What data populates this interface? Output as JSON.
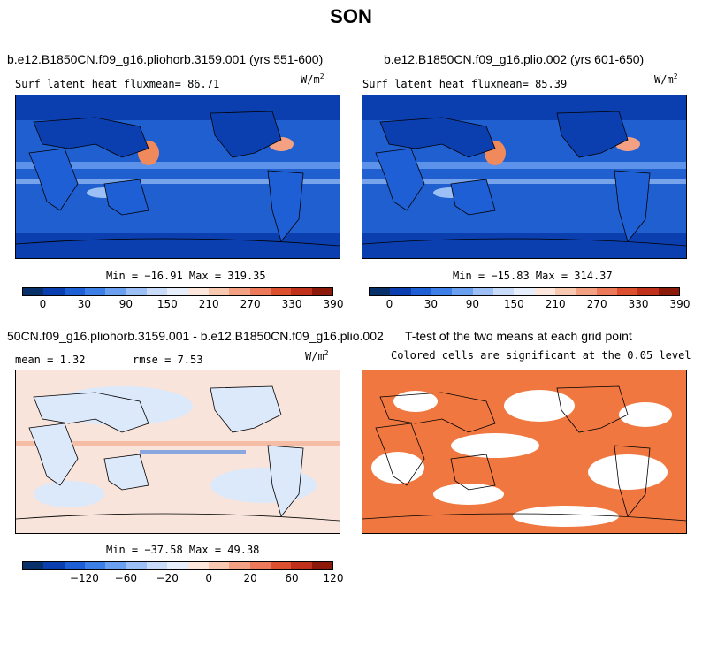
{
  "title": "SON",
  "panels": {
    "p1": {
      "title": "b.e12.B1850CN.f09_g16.pliohorb.3159.001 (yrs 551-600)",
      "stat": "Surf latent heat fluxmean=  86.71",
      "units": "W/m",
      "units_sup": "2",
      "minmax": "Min = −16.91 Max = 319.35"
    },
    "p2": {
      "title": "b.e12.B1850CN.f09_g16.plio.002 (yrs 601-650)",
      "stat": "Surf latent heat fluxmean=  85.39",
      "units": "W/m",
      "units_sup": "2",
      "minmax": "Min = −15.83 Max = 314.37"
    },
    "p3": {
      "title": "50CN.f09_g16.pliohorb.3159.001 - b.e12.B1850CN.f09_g16.plio.002",
      "stat_mean": "mean =   1.32",
      "stat_rmse": "rmse =   7.53",
      "units": "W/m",
      "units_sup": "2",
      "minmax": "Min = −37.58 Max =  49.38"
    },
    "p4": {
      "title": "T-test of the two means at each grid point",
      "subtitle": "Colored cells are significant at the 0.05 level"
    }
  },
  "colorbars": {
    "abs": {
      "labels": [
        "0",
        "30",
        "90",
        "150",
        "210",
        "270",
        "330",
        "390"
      ],
      "colors": [
        "#08306b",
        "#0b3fb0",
        "#1e5fd6",
        "#3d7fe6",
        "#6b9ff0",
        "#9cc0f5",
        "#c8dcfa",
        "#e6eefc",
        "#fde6dc",
        "#f9c8b0",
        "#f4a183",
        "#ec7a5a",
        "#dc5030",
        "#c0301a",
        "#8b1a0a"
      ]
    },
    "diff": {
      "labels": [
        "−120",
        "−60",
        "−20",
        "0",
        "20",
        "60",
        "120"
      ],
      "colors": [
        "#08306b",
        "#0b3fb0",
        "#1e5fd6",
        "#3d7fe6",
        "#6b9ff0",
        "#9cc0f5",
        "#c8dcfa",
        "#e6eefc",
        "#fde6dc",
        "#f9c8b0",
        "#f4a183",
        "#ec7a5a",
        "#dc5030",
        "#c0301a",
        "#8b1a0a"
      ]
    }
  },
  "colors": {
    "ocean_abs": "#1f5fd0",
    "ocean_abs_light": "#4a85e8",
    "warm": "#f08a5d",
    "diff_bg": "#f8e4da",
    "diff_blue": "#dce9fb",
    "ttest_fill": "#f07840"
  }
}
